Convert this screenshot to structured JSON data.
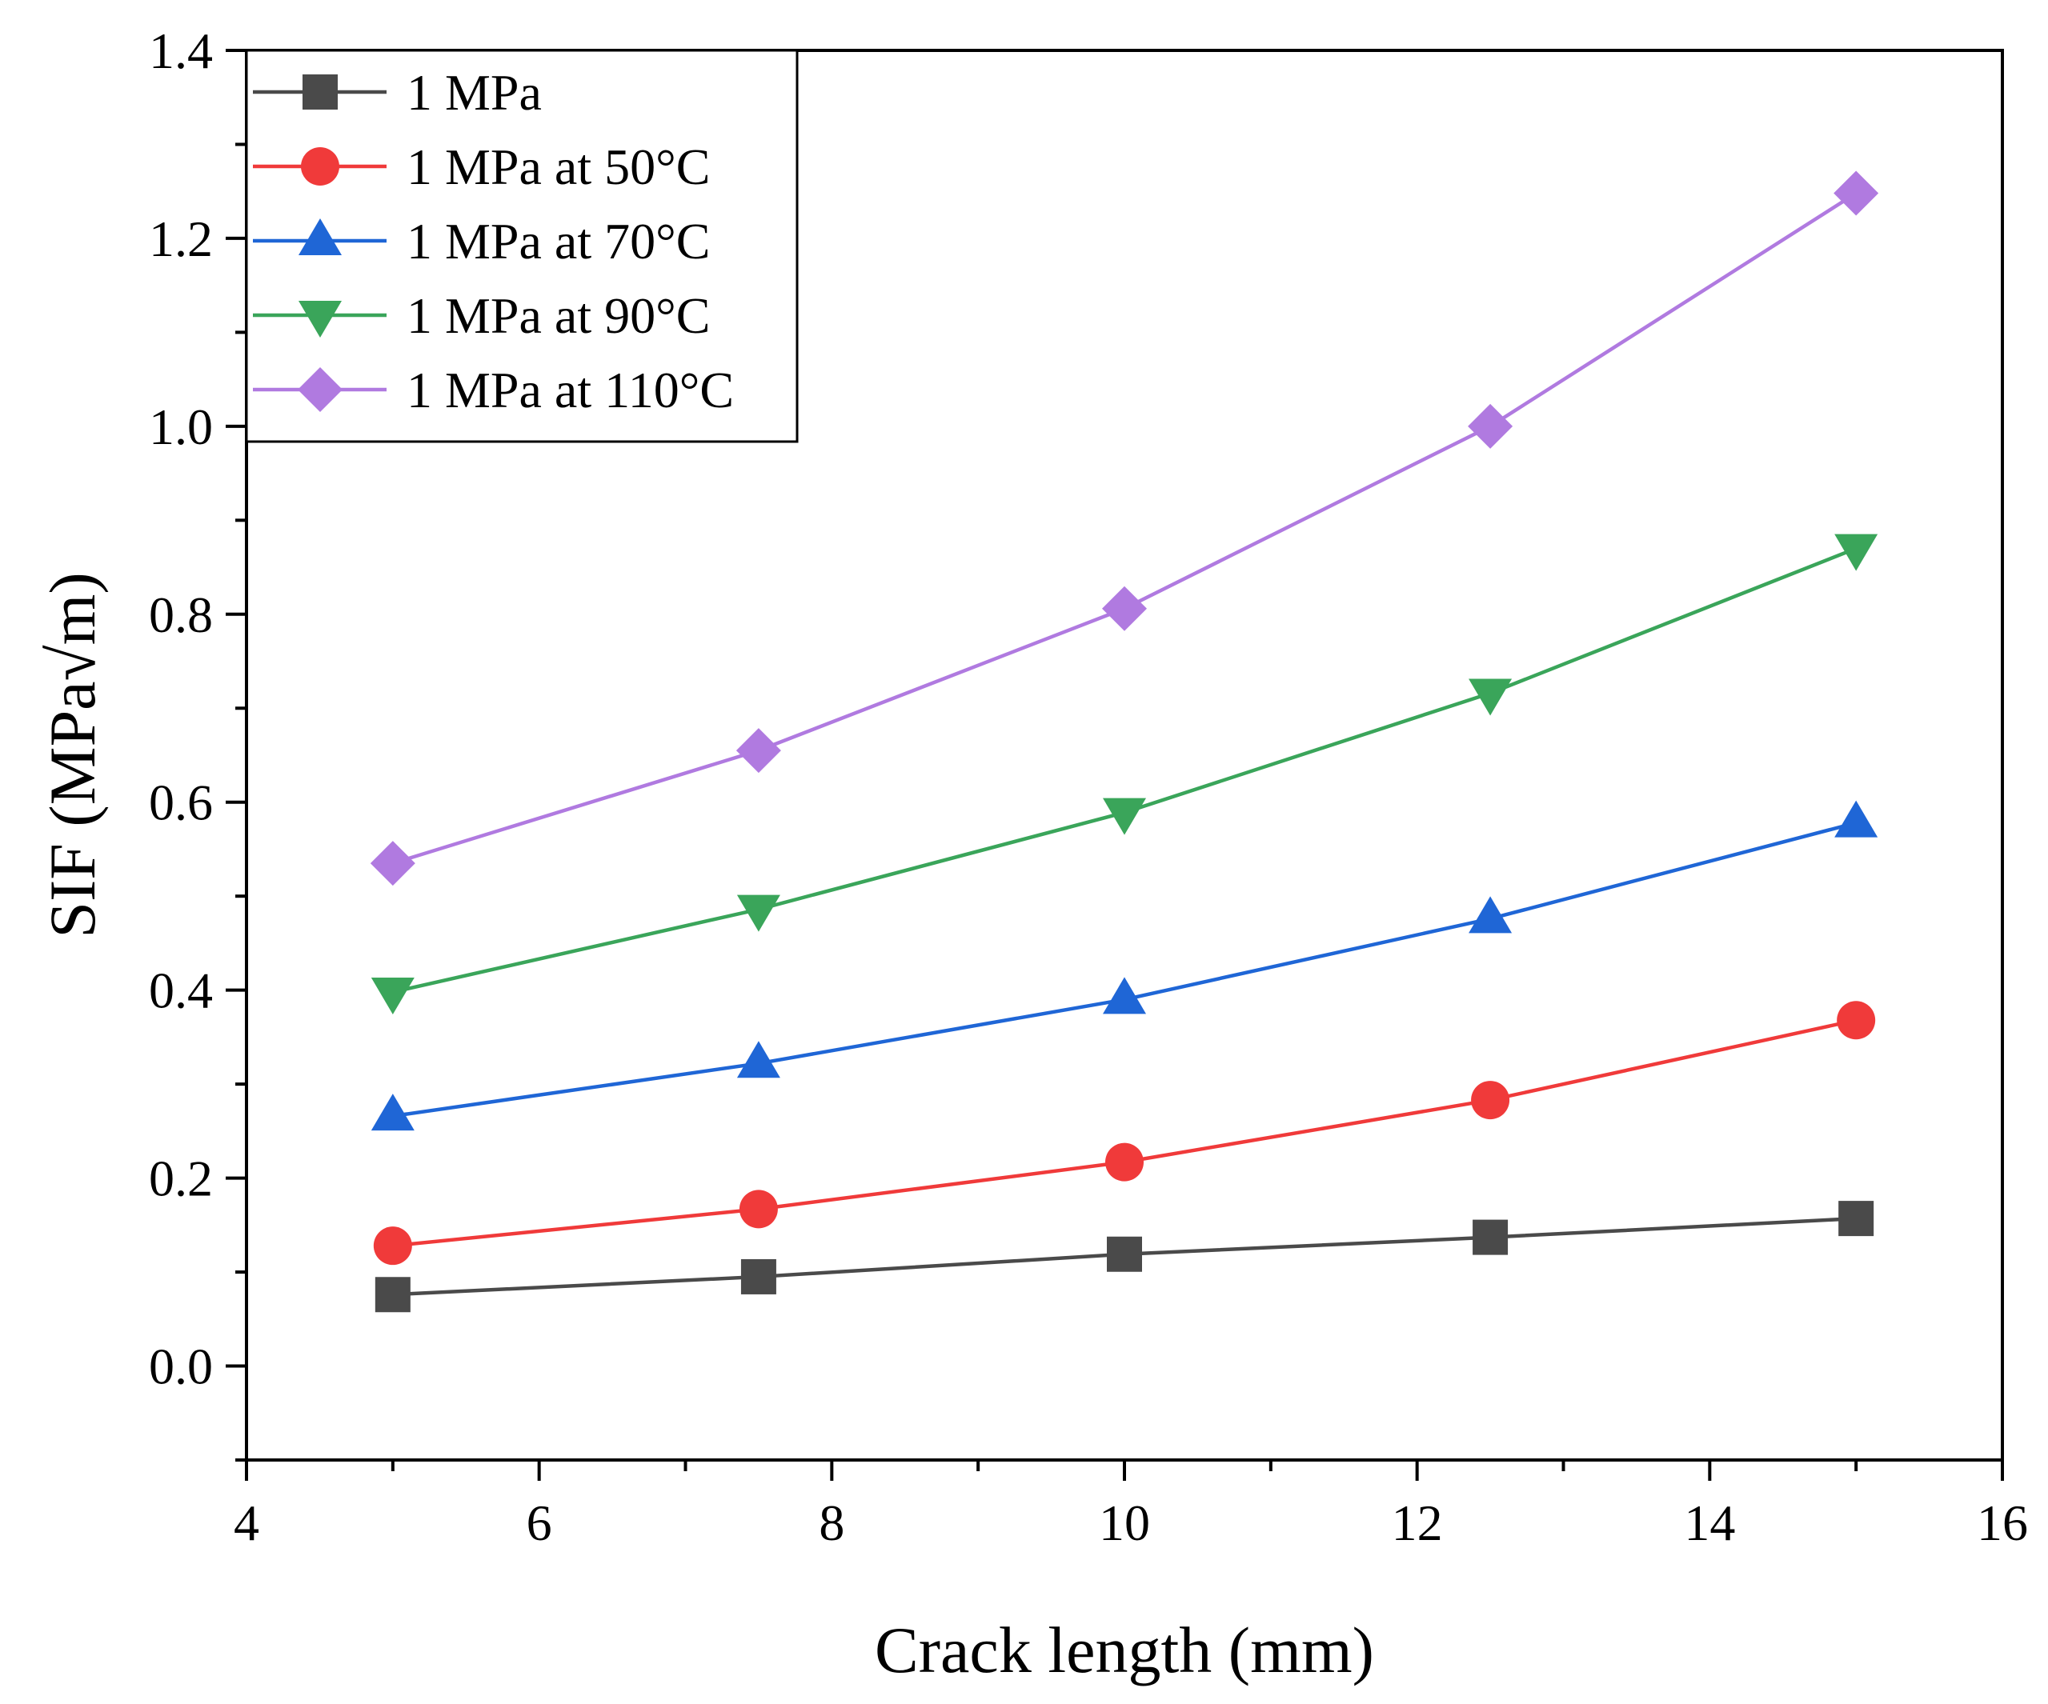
{
  "chart_data": {
    "type": "line",
    "title": "",
    "xlabel": "Crack length (mm)",
    "ylabel": "SIF (MPa√m)",
    "xlim": [
      4,
      16
    ],
    "ylim": [
      -0.1,
      1.4
    ],
    "xticks": [
      4,
      6,
      8,
      10,
      12,
      14,
      16
    ],
    "xtick_labels": [
      "4",
      "6",
      "8",
      "10",
      "12",
      "14",
      "16"
    ],
    "yticks": [
      0.0,
      0.2,
      0.4,
      0.6,
      0.8,
      1.0,
      1.2,
      1.4
    ],
    "ytick_labels": [
      "0.0",
      "0.2",
      "0.4",
      "0.6",
      "0.8",
      "1.0",
      "1.2",
      "1.4"
    ],
    "grid": false,
    "legend_position": "top-left",
    "x": [
      5,
      7.5,
      10,
      12.5,
      15
    ],
    "series": [
      {
        "name": "1 MPa",
        "color": "#4a4a4a",
        "marker": "square",
        "values": [
          0.076,
          0.095,
          0.119,
          0.137,
          0.157
        ]
      },
      {
        "name": "1 MPa at 50°C",
        "color": "#f03a3a",
        "marker": "circle",
        "values": [
          0.128,
          0.167,
          0.217,
          0.283,
          0.368
        ]
      },
      {
        "name": "1 MPa at 70°C",
        "color": "#1f66d6",
        "marker": "triangle-up",
        "values": [
          0.266,
          0.322,
          0.39,
          0.476,
          0.578
        ]
      },
      {
        "name": "1 MPa at 90°C",
        "color": "#3aa55a",
        "marker": "triangle-down",
        "values": [
          0.398,
          0.486,
          0.589,
          0.716,
          0.87
        ]
      },
      {
        "name": "1 MPa at 110°C",
        "color": "#b07ae0",
        "marker": "diamond",
        "values": [
          0.535,
          0.655,
          0.806,
          1.0,
          1.248
        ]
      }
    ]
  }
}
